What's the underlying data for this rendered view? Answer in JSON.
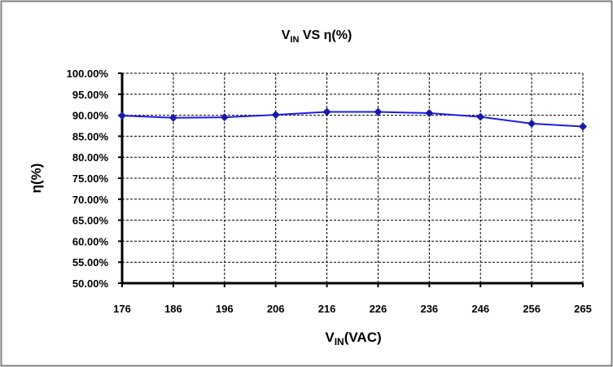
{
  "chart_data": {
    "type": "line",
    "title": {
      "main": "V",
      "sub": "IN",
      "rest": " VS η(%)"
    },
    "xlabel": {
      "main": "V",
      "sub": "IN",
      "rest": "(VAC)"
    },
    "ylabel": "η(%)",
    "categories": [
      "176",
      "186",
      "196",
      "206",
      "216",
      "226",
      "236",
      "246",
      "256",
      "265"
    ],
    "values": [
      89.9,
      89.4,
      89.5,
      90.1,
      90.8,
      90.8,
      90.5,
      89.6,
      88.0,
      87.3
    ],
    "yticks": [
      "50.00%",
      "55.00%",
      "60.00%",
      "65.00%",
      "70.00%",
      "75.00%",
      "80.00%",
      "85.00%",
      "90.00%",
      "95.00%",
      "100.00%"
    ],
    "ylim": [
      50,
      100
    ],
    "grid": true,
    "legend": "none",
    "line_color": "#1c1cf0",
    "marker_color": "#1a1aa8"
  }
}
